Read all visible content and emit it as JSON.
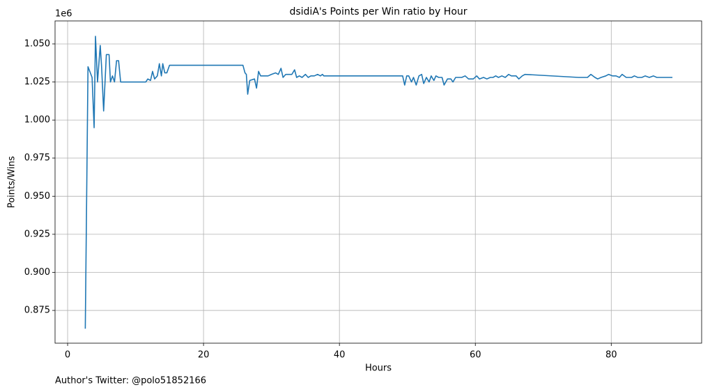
{
  "chart_data": {
    "type": "line",
    "title": "dsidiA's Points per Win ratio by Hour",
    "x_label": "Hours",
    "y_label": "Points/Wins",
    "y_offset_label": "1e6",
    "footer": "Author's Twitter: @polo51852166",
    "xlim": [
      -1.85,
      93.3
    ],
    "ylim": [
      0.8535,
      1.0651
    ],
    "xticks": [
      0,
      20,
      40,
      60,
      80
    ],
    "yticks": [
      {
        "value": 0.875,
        "label": "0.875"
      },
      {
        "value": 0.9,
        "label": "0.900"
      },
      {
        "value": 0.925,
        "label": "0.925"
      },
      {
        "value": 0.95,
        "label": "0.950"
      },
      {
        "value": 0.975,
        "label": "0.975"
      },
      {
        "value": 1.0,
        "label": "1.000"
      },
      {
        "value": 1.025,
        "label": "1.025"
      },
      {
        "value": 1.05,
        "label": "1.050"
      }
    ],
    "grid": true,
    "series": [
      {
        "color": "#1f77b4",
        "x": [
          2.6,
          3.0,
          3.6,
          3.9,
          4.1,
          4.4,
          4.8,
          5.0,
          5.3,
          5.7,
          6.1,
          6.3,
          6.6,
          6.9,
          7.2,
          7.5,
          7.8,
          11.5,
          11.8,
          12.2,
          12.5,
          12.8,
          13.2,
          13.5,
          13.8,
          14.0,
          14.3,
          14.6,
          15.0,
          25.8,
          26.1,
          26.3,
          26.5,
          26.8,
          27.5,
          27.8,
          28.1,
          28.4,
          29.5,
          30.0,
          30.6,
          31.0,
          31.4,
          31.7,
          32.1,
          33.0,
          33.4,
          33.7,
          34.1,
          34.5,
          35.0,
          35.4,
          35.8,
          36.3,
          36.8,
          37.2,
          37.5,
          37.7,
          49.3,
          49.6,
          49.9,
          50.2,
          50.6,
          50.9,
          51.3,
          51.7,
          52.1,
          52.4,
          52.8,
          53.2,
          53.5,
          53.9,
          54.2,
          54.6,
          55.1,
          55.4,
          55.9,
          56.4,
          56.7,
          57.1,
          57.6,
          58.0,
          58.5,
          59.0,
          59.7,
          60.2,
          60.6,
          61.2,
          61.7,
          62.2,
          62.6,
          63.0,
          63.4,
          63.9,
          64.4,
          64.9,
          65.3,
          66.0,
          66.4,
          66.9,
          67.3,
          75.2,
          76.0,
          76.5,
          77.0,
          77.6,
          78.0,
          78.5,
          79.2,
          79.6,
          80.2,
          80.7,
          81.2,
          81.6,
          82.2,
          83.0,
          83.4,
          83.9,
          84.5,
          85.0,
          85.6,
          86.2,
          86.7,
          87.3,
          88.0,
          89.0
        ],
        "values": [
          0.863,
          1.035,
          1.028,
          0.995,
          1.055,
          1.025,
          1.049,
          1.035,
          1.006,
          1.043,
          1.043,
          1.025,
          1.029,
          1.025,
          1.039,
          1.039,
          1.025,
          1.025,
          1.027,
          1.026,
          1.032,
          1.027,
          1.029,
          1.037,
          1.029,
          1.037,
          1.031,
          1.031,
          1.036,
          1.036,
          1.031,
          1.03,
          1.017,
          1.026,
          1.027,
          1.021,
          1.032,
          1.029,
          1.029,
          1.03,
          1.031,
          1.03,
          1.034,
          1.028,
          1.03,
          1.03,
          1.033,
          1.028,
          1.029,
          1.028,
          1.03,
          1.028,
          1.029,
          1.029,
          1.03,
          1.029,
          1.03,
          1.029,
          1.029,
          1.023,
          1.029,
          1.029,
          1.025,
          1.028,
          1.023,
          1.029,
          1.03,
          1.024,
          1.028,
          1.025,
          1.029,
          1.026,
          1.029,
          1.028,
          1.028,
          1.023,
          1.027,
          1.027,
          1.025,
          1.028,
          1.028,
          1.028,
          1.029,
          1.027,
          1.027,
          1.029,
          1.027,
          1.028,
          1.027,
          1.028,
          1.028,
          1.029,
          1.028,
          1.029,
          1.028,
          1.03,
          1.029,
          1.029,
          1.027,
          1.029,
          1.03,
          1.028,
          1.028,
          1.028,
          1.03,
          1.028,
          1.027,
          1.028,
          1.029,
          1.03,
          1.029,
          1.029,
          1.028,
          1.03,
          1.028,
          1.028,
          1.029,
          1.028,
          1.028,
          1.029,
          1.028,
          1.029,
          1.028,
          1.028,
          1.028,
          1.028
        ]
      }
    ]
  }
}
